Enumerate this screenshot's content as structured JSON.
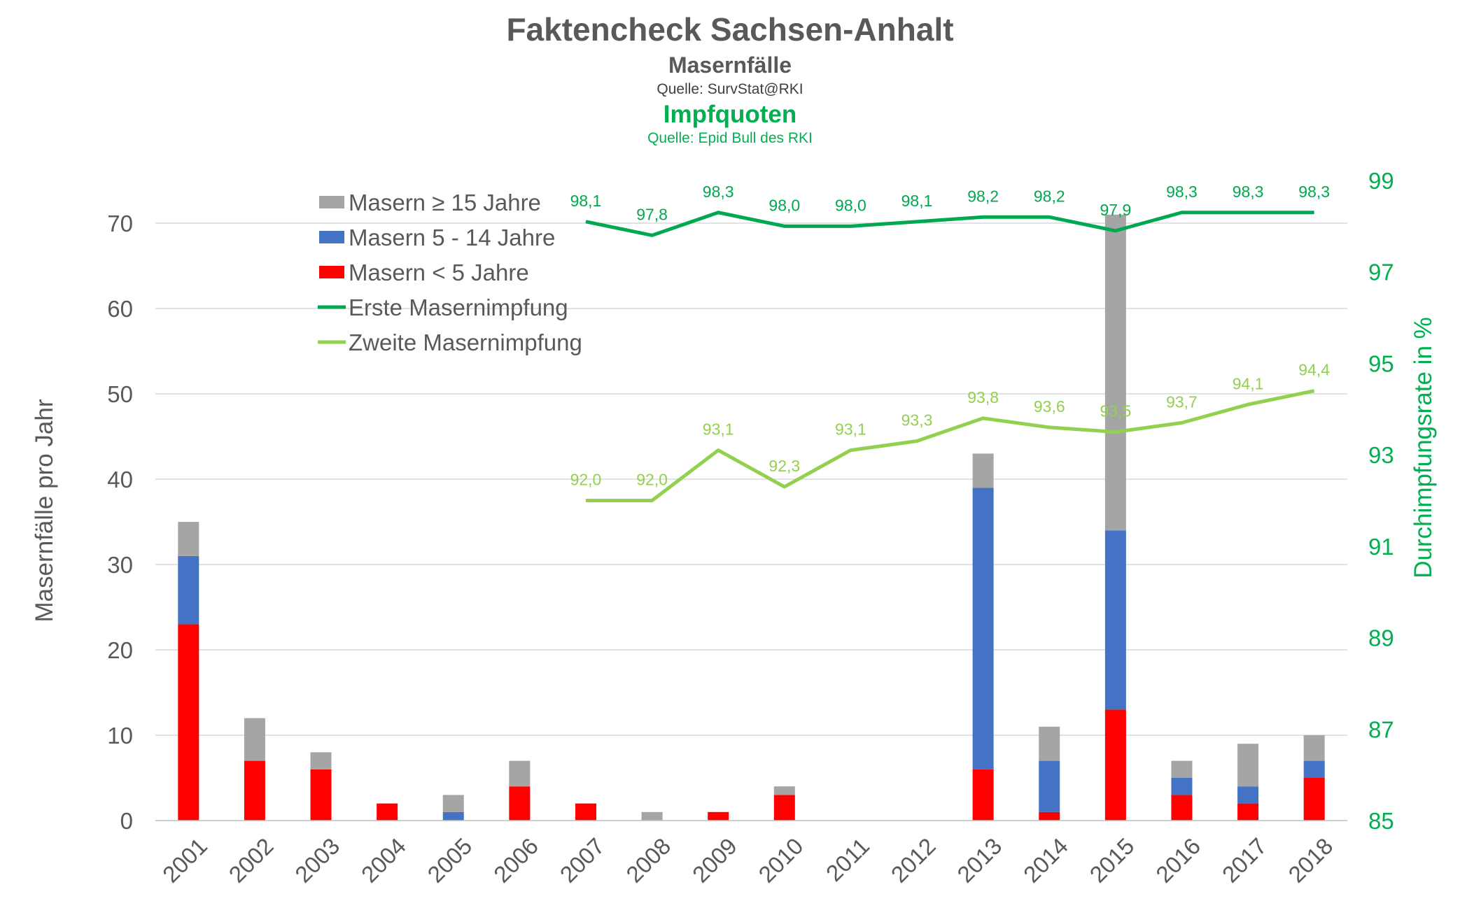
{
  "header": {
    "title": "Faktencheck Sachsen-Anhalt",
    "subtitle1": "Masernfälle",
    "source1": "Quelle: SurvStat@RKI",
    "subtitle2": "Impfquoten",
    "source2": "Quelle: Epid Bull des RKI"
  },
  "colors": {
    "under5": "#FF0000",
    "age5to14": "#4472C4",
    "age15plus": "#A5A5A5",
    "first_dose": "#00A84F",
    "second_dose": "#92D050",
    "green_text": "#00B050",
    "grid": "#D9D9D9"
  },
  "chart_data": {
    "type": "bar",
    "stacked": true,
    "categories": [
      "2001",
      "2002",
      "2003",
      "2004",
      "2005",
      "2006",
      "2007",
      "2008",
      "2009",
      "2010",
      "2011",
      "2012",
      "2013",
      "2014",
      "2015",
      "2016",
      "2017",
      "2018"
    ],
    "series": [
      {
        "name": "Masern < 5 Jahre",
        "axis": "left",
        "values": [
          23,
          7,
          6,
          2,
          0,
          4,
          2,
          0,
          1,
          3,
          0,
          0,
          6,
          1,
          13,
          3,
          2,
          5
        ]
      },
      {
        "name": "Masern 5 - 14 Jahre",
        "axis": "left",
        "values": [
          8,
          0,
          0,
          0,
          1,
          0,
          0,
          0,
          0,
          0,
          0,
          0,
          33,
          6,
          21,
          2,
          2,
          2
        ]
      },
      {
        "name": "Masern ≥ 15 Jahre",
        "axis": "left",
        "values": [
          4,
          5,
          2,
          0,
          2,
          3,
          0,
          1,
          0,
          1,
          0,
          0,
          4,
          4,
          37,
          2,
          5,
          3
        ]
      }
    ],
    "lines": [
      {
        "name": "Erste Masernimpfung",
        "axis": "right",
        "values": [
          null,
          null,
          null,
          null,
          null,
          null,
          98.1,
          97.8,
          98.3,
          98.0,
          98.0,
          98.1,
          98.2,
          98.2,
          97.9,
          98.3,
          98.3,
          98.3
        ],
        "labels": [
          "",
          "",
          "",
          "",
          "",
          "",
          "98,1",
          "97,8",
          "98,3",
          "98,0",
          "98,0",
          "98,1",
          "98,2",
          "98,2",
          "97,9",
          "98,3",
          "98,3",
          "98,3"
        ]
      },
      {
        "name": "Zweite Masernimpfung",
        "axis": "right",
        "values": [
          null,
          null,
          null,
          null,
          null,
          null,
          92.0,
          92.0,
          93.1,
          92.3,
          93.1,
          93.3,
          93.8,
          93.6,
          93.5,
          93.7,
          94.1,
          94.4
        ],
        "labels": [
          "",
          "",
          "",
          "",
          "",
          "",
          "92,0",
          "92,0",
          "93,1",
          "92,3",
          "93,1",
          "93,3",
          "93,8",
          "93,6",
          "93,5",
          "93,7",
          "94,1",
          "94,4"
        ]
      }
    ],
    "left_axis": {
      "label": "Masernfälle pro Jahr",
      "min": 0,
      "max": 75,
      "ticks": [
        0,
        10,
        20,
        30,
        40,
        50,
        60,
        70
      ]
    },
    "right_axis": {
      "label": "Durchimpfungsrate in %",
      "min": 85,
      "max": 99,
      "ticks": [
        85,
        87,
        89,
        91,
        93,
        95,
        97,
        99
      ]
    },
    "grid": true,
    "legend_position": "top-left",
    "legend": [
      "Masern ≥ 15 Jahre",
      "Masern 5 - 14 Jahre",
      "Masern < 5 Jahre",
      "Erste Masernimpfung",
      "Zweite Masernimpfung"
    ]
  }
}
